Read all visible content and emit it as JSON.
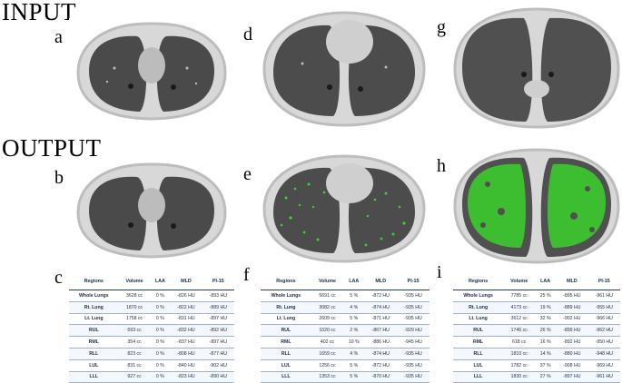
{
  "headings": {
    "input": "INPUT",
    "output": "OUTPUT"
  },
  "panel_labels": [
    "a",
    "b",
    "c",
    "d",
    "e",
    "f",
    "g",
    "h",
    "i"
  ],
  "columns": [
    "Regions",
    "Volume",
    "LAA",
    "MLD",
    "PI-15"
  ],
  "tables": [
    {
      "rows": [
        [
          "Whole Lungs",
          "3628 cc",
          "0 %",
          "-826 HU",
          "-893 HU"
        ],
        [
          "Rt. Lung",
          "1870 cc",
          "0 %",
          "-822 HU",
          "-889 HU"
        ],
        [
          "Lt. Lung",
          "1758 cc",
          "0 %",
          "-831 HU",
          "-897 HU"
        ],
        [
          "RUL",
          "693 cc",
          "0 %",
          "-832 HU",
          "-892 HU"
        ],
        [
          "RML",
          "354 cc",
          "0 %",
          "-837 HU",
          "-897 HU"
        ],
        [
          "RLL",
          "823 cc",
          "0 %",
          "-808 HU",
          "-877 HU"
        ],
        [
          "LUL",
          "831 cc",
          "0 %",
          "-840 HU",
          "-902 HU"
        ],
        [
          "LLL",
          "927 cc",
          "0 %",
          "-823 HU",
          "-890 HU"
        ]
      ]
    },
    {
      "rows": [
        [
          "Whole Lungs",
          "5691 cc",
          "5 %",
          "-872 HU",
          "-935 HU"
        ],
        [
          "Rt. Lung",
          "3082 cc",
          "4 %",
          "-874 HU",
          "-935 HU"
        ],
        [
          "Lt. Lung",
          "2609 cc",
          "5 %",
          "-871 HU",
          "-935 HU"
        ],
        [
          "RUL",
          "1020 cc",
          "2 %",
          "-867 HU",
          "-929 HU"
        ],
        [
          "RML",
          "402 cc",
          "10 %",
          "-886 HU",
          "-945 HU"
        ],
        [
          "RLL",
          "1659 cc",
          "4 %",
          "-874 HU",
          "-935 HU"
        ],
        [
          "LUL",
          "1256 cc",
          "5 %",
          "-872 HU",
          "-935 HU"
        ],
        [
          "LLL",
          "1353 cc",
          "5 %",
          "-870 HU",
          "-935 HU"
        ]
      ]
    },
    {
      "rows": [
        [
          "Whole Lungs",
          "7785 cc",
          "25 %",
          "-895 HU",
          "-961 HU"
        ],
        [
          "Rt. Lung",
          "4173 cc",
          "19 %",
          "-889 HU",
          "-955 HU"
        ],
        [
          "Lt. Lung",
          "3612 cc",
          "32 %",
          "-902 HU",
          "-966 HU"
        ],
        [
          "RUL",
          "1746 cc",
          "26 %",
          "-899 HU",
          "-962 HU"
        ],
        [
          "RML",
          "618 cc",
          "16 %",
          "-892 HU",
          "-950 HU"
        ],
        [
          "RLL",
          "1810 cc",
          "14 %",
          "-880 HU",
          "-948 HU"
        ],
        [
          "LUL",
          "1782 cc",
          "37 %",
          "-908 HU",
          "-969 HU"
        ],
        [
          "LLL",
          "1830 cc",
          "27 %",
          "-897 HU",
          "-961 HU"
        ]
      ]
    }
  ],
  "colors": {
    "overlay": "#39d12b",
    "table_text": "#1c2d4a",
    "table_rule": "#1f3a6b"
  }
}
